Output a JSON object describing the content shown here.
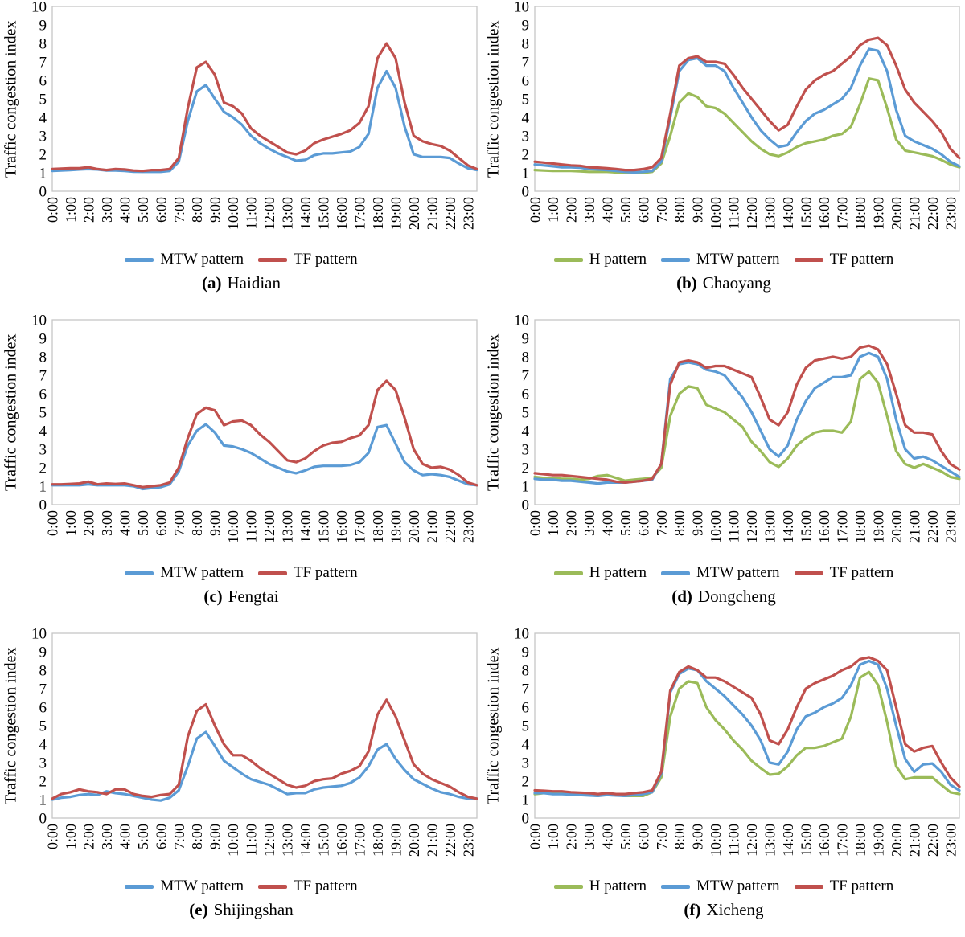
{
  "figure": {
    "ylabel": "Traffic congestion index"
  },
  "axis": {
    "y_ticks": [
      0,
      1,
      2,
      3,
      4,
      5,
      6,
      7,
      8,
      9,
      10
    ],
    "x_tick_labels": [
      "0:00",
      "1:00",
      "2:00",
      "3:00",
      "4:00",
      "5:00",
      "6:00",
      "7:00",
      "8:00",
      "9:00",
      "10:00",
      "11:00",
      "12:00",
      "13:00",
      "14:00",
      "15:00",
      "16:00",
      "17:00",
      "18:00",
      "19:00",
      "20:00",
      "21:00",
      "22:00",
      "23:00"
    ]
  },
  "colors": {
    "H pattern": "#9BBB59",
    "MTW pattern": "#5B9BD5",
    "TF pattern": "#C0504D"
  },
  "chart_data": [
    {
      "type": "line",
      "caption_letter": "(a)",
      "caption_name": "Haidian",
      "ylim": [
        0,
        10
      ],
      "x_start": "0:00",
      "x_step_hours": 0.5,
      "grid": false,
      "legend_position": "bottom",
      "series": [
        {
          "name": "MTW pattern",
          "values": [
            1.1,
            1.12,
            1.15,
            1.18,
            1.2,
            1.18,
            1.12,
            1.12,
            1.1,
            1.06,
            1.05,
            1.05,
            1.05,
            1.1,
            1.6,
            3.8,
            5.4,
            5.75,
            5.0,
            4.3,
            4.0,
            3.6,
            3.0,
            2.6,
            2.3,
            2.05,
            1.85,
            1.65,
            1.7,
            1.95,
            2.05,
            2.05,
            2.1,
            2.15,
            2.4,
            3.1,
            5.6,
            6.5,
            5.6,
            3.5,
            2.0,
            1.85,
            1.85,
            1.85,
            1.8,
            1.5,
            1.25,
            1.15
          ]
        },
        {
          "name": "TF pattern",
          "values": [
            1.2,
            1.22,
            1.25,
            1.25,
            1.3,
            1.2,
            1.15,
            1.2,
            1.18,
            1.12,
            1.1,
            1.15,
            1.15,
            1.2,
            1.8,
            4.5,
            6.7,
            7.0,
            6.3,
            4.8,
            4.6,
            4.2,
            3.4,
            3.0,
            2.7,
            2.4,
            2.1,
            2.0,
            2.2,
            2.6,
            2.8,
            2.95,
            3.1,
            3.3,
            3.7,
            4.6,
            7.2,
            8.0,
            7.2,
            4.8,
            3.0,
            2.7,
            2.55,
            2.45,
            2.2,
            1.8,
            1.4,
            1.2
          ]
        }
      ]
    },
    {
      "type": "line",
      "caption_letter": "(b)",
      "caption_name": "Chaoyang",
      "ylim": [
        0,
        10
      ],
      "x_start": "0:00",
      "x_step_hours": 0.5,
      "grid": false,
      "legend_position": "bottom",
      "series": [
        {
          "name": "H pattern",
          "values": [
            1.15,
            1.12,
            1.1,
            1.1,
            1.1,
            1.08,
            1.05,
            1.05,
            1.05,
            1.02,
            1.0,
            1.0,
            1.0,
            1.05,
            1.5,
            3.0,
            4.8,
            5.3,
            5.1,
            4.6,
            4.5,
            4.2,
            3.7,
            3.2,
            2.7,
            2.3,
            2.0,
            1.9,
            2.1,
            2.4,
            2.6,
            2.7,
            2.8,
            3.0,
            3.1,
            3.5,
            4.7,
            6.1,
            6.0,
            4.5,
            2.8,
            2.2,
            2.1,
            2.0,
            1.9,
            1.7,
            1.45,
            1.3
          ]
        },
        {
          "name": "MTW pattern",
          "values": [
            1.45,
            1.4,
            1.35,
            1.3,
            1.3,
            1.28,
            1.2,
            1.18,
            1.15,
            1.1,
            1.05,
            1.02,
            1.05,
            1.1,
            1.6,
            4.0,
            6.5,
            7.1,
            7.2,
            6.8,
            6.8,
            6.5,
            5.6,
            4.8,
            4.0,
            3.3,
            2.8,
            2.4,
            2.5,
            3.2,
            3.8,
            4.2,
            4.4,
            4.7,
            5.0,
            5.6,
            6.8,
            7.7,
            7.6,
            6.5,
            4.4,
            3.0,
            2.7,
            2.5,
            2.3,
            2.0,
            1.6,
            1.35
          ]
        },
        {
          "name": "TF pattern",
          "values": [
            1.6,
            1.55,
            1.5,
            1.45,
            1.4,
            1.38,
            1.3,
            1.28,
            1.25,
            1.2,
            1.15,
            1.15,
            1.2,
            1.3,
            1.8,
            4.2,
            6.8,
            7.2,
            7.3,
            7.0,
            7.0,
            6.9,
            6.3,
            5.6,
            5.0,
            4.4,
            3.8,
            3.3,
            3.6,
            4.6,
            5.5,
            6.0,
            6.3,
            6.5,
            6.9,
            7.3,
            7.9,
            8.2,
            8.3,
            7.9,
            6.8,
            5.5,
            4.8,
            4.3,
            3.8,
            3.2,
            2.3,
            1.8
          ]
        }
      ]
    },
    {
      "type": "line",
      "caption_letter": "(c)",
      "caption_name": "Fengtai",
      "ylim": [
        0,
        10
      ],
      "x_start": "0:00",
      "x_step_hours": 0.5,
      "grid": false,
      "legend_position": "bottom",
      "series": [
        {
          "name": "MTW pattern",
          "values": [
            1.05,
            1.05,
            1.05,
            1.05,
            1.1,
            1.05,
            1.05,
            1.05,
            1.05,
            1.0,
            0.85,
            0.9,
            0.95,
            1.1,
            1.8,
            3.2,
            4.0,
            4.35,
            3.9,
            3.2,
            3.15,
            3.0,
            2.8,
            2.5,
            2.2,
            2.0,
            1.8,
            1.7,
            1.85,
            2.05,
            2.1,
            2.1,
            2.1,
            2.15,
            2.3,
            2.8,
            4.2,
            4.3,
            3.3,
            2.3,
            1.85,
            1.6,
            1.65,
            1.6,
            1.5,
            1.3,
            1.1,
            1.05
          ]
        },
        {
          "name": "TF pattern",
          "values": [
            1.1,
            1.1,
            1.12,
            1.15,
            1.25,
            1.1,
            1.15,
            1.12,
            1.15,
            1.05,
            0.95,
            1.0,
            1.05,
            1.2,
            2.0,
            3.6,
            4.9,
            5.25,
            5.1,
            4.3,
            4.5,
            4.55,
            4.3,
            3.8,
            3.4,
            2.9,
            2.4,
            2.3,
            2.5,
            2.9,
            3.2,
            3.35,
            3.4,
            3.6,
            3.75,
            4.3,
            6.2,
            6.7,
            6.2,
            4.7,
            3.0,
            2.2,
            2.0,
            2.05,
            1.9,
            1.6,
            1.2,
            1.05
          ]
        }
      ]
    },
    {
      "type": "line",
      "caption_letter": "(d)",
      "caption_name": "Dongcheng",
      "ylim": [
        0,
        10
      ],
      "x_start": "0:00",
      "x_step_hours": 0.5,
      "grid": false,
      "legend_position": "bottom",
      "series": [
        {
          "name": "H pattern",
          "values": [
            1.5,
            1.45,
            1.45,
            1.4,
            1.4,
            1.35,
            1.4,
            1.55,
            1.6,
            1.45,
            1.3,
            1.35,
            1.4,
            1.45,
            2.0,
            4.8,
            6.0,
            6.4,
            6.3,
            5.4,
            5.2,
            5.0,
            4.6,
            4.2,
            3.4,
            2.9,
            2.3,
            2.05,
            2.5,
            3.2,
            3.6,
            3.9,
            4.0,
            4.0,
            3.9,
            4.5,
            6.8,
            7.2,
            6.6,
            4.8,
            2.9,
            2.2,
            2.0,
            2.2,
            2.0,
            1.8,
            1.5,
            1.4
          ]
        },
        {
          "name": "MTW pattern",
          "values": [
            1.4,
            1.35,
            1.35,
            1.3,
            1.3,
            1.25,
            1.2,
            1.15,
            1.2,
            1.2,
            1.2,
            1.25,
            1.3,
            1.35,
            2.2,
            6.8,
            7.6,
            7.7,
            7.6,
            7.3,
            7.2,
            7.0,
            6.4,
            5.8,
            5.0,
            4.0,
            3.0,
            2.6,
            3.2,
            4.6,
            5.6,
            6.3,
            6.6,
            6.9,
            6.9,
            7.0,
            8.0,
            8.2,
            8.0,
            6.8,
            4.6,
            3.0,
            2.5,
            2.6,
            2.4,
            2.1,
            1.8,
            1.5
          ]
        },
        {
          "name": "TF pattern",
          "values": [
            1.7,
            1.65,
            1.6,
            1.6,
            1.55,
            1.5,
            1.45,
            1.4,
            1.35,
            1.25,
            1.2,
            1.25,
            1.3,
            1.4,
            2.2,
            6.5,
            7.7,
            7.8,
            7.7,
            7.4,
            7.5,
            7.5,
            7.3,
            7.1,
            6.9,
            5.8,
            4.6,
            4.3,
            5.0,
            6.5,
            7.4,
            7.8,
            7.9,
            8.0,
            7.9,
            8.0,
            8.5,
            8.6,
            8.4,
            7.6,
            6.0,
            4.3,
            3.9,
            3.9,
            3.8,
            2.9,
            2.2,
            1.9
          ]
        }
      ]
    },
    {
      "type": "line",
      "caption_letter": "(e)",
      "caption_name": "Shijingshan",
      "ylim": [
        0,
        10
      ],
      "x_start": "0:00",
      "x_step_hours": 0.5,
      "grid": false,
      "legend_position": "bottom",
      "series": [
        {
          "name": "MTW pattern",
          "values": [
            1.0,
            1.1,
            1.15,
            1.25,
            1.3,
            1.25,
            1.45,
            1.35,
            1.3,
            1.2,
            1.1,
            1.0,
            0.95,
            1.1,
            1.5,
            2.8,
            4.3,
            4.65,
            3.9,
            3.1,
            2.75,
            2.4,
            2.1,
            1.95,
            1.8,
            1.55,
            1.3,
            1.35,
            1.35,
            1.55,
            1.65,
            1.7,
            1.75,
            1.9,
            2.2,
            2.8,
            3.7,
            4.0,
            3.2,
            2.6,
            2.1,
            1.85,
            1.6,
            1.4,
            1.3,
            1.15,
            1.05,
            1.05
          ]
        },
        {
          "name": "TF pattern",
          "values": [
            1.05,
            1.3,
            1.4,
            1.55,
            1.45,
            1.4,
            1.3,
            1.55,
            1.55,
            1.3,
            1.2,
            1.15,
            1.25,
            1.3,
            1.8,
            4.4,
            5.8,
            6.15,
            5.0,
            4.0,
            3.4,
            3.4,
            3.1,
            2.7,
            2.4,
            2.1,
            1.8,
            1.65,
            1.75,
            2.0,
            2.1,
            2.15,
            2.4,
            2.55,
            2.8,
            3.6,
            5.6,
            6.4,
            5.5,
            4.2,
            2.9,
            2.4,
            2.1,
            1.9,
            1.7,
            1.4,
            1.15,
            1.05
          ]
        }
      ]
    },
    {
      "type": "line",
      "caption_letter": "(f)",
      "caption_name": "Xicheng",
      "ylim": [
        0,
        10
      ],
      "x_start": "0:00",
      "x_step_hours": 0.5,
      "grid": false,
      "legend_position": "bottom",
      "series": [
        {
          "name": "H pattern",
          "values": [
            1.3,
            1.35,
            1.35,
            1.35,
            1.3,
            1.25,
            1.25,
            1.2,
            1.3,
            1.25,
            1.2,
            1.2,
            1.2,
            1.4,
            2.2,
            5.5,
            7.0,
            7.4,
            7.3,
            6.0,
            5.3,
            4.8,
            4.2,
            3.7,
            3.1,
            2.7,
            2.35,
            2.4,
            2.8,
            3.4,
            3.8,
            3.8,
            3.9,
            4.1,
            4.3,
            5.5,
            7.6,
            7.9,
            7.2,
            5.2,
            2.8,
            2.1,
            2.2,
            2.2,
            2.2,
            1.8,
            1.4,
            1.3
          ]
        },
        {
          "name": "MTW pattern",
          "values": [
            1.35,
            1.35,
            1.3,
            1.3,
            1.28,
            1.25,
            1.22,
            1.2,
            1.25,
            1.22,
            1.2,
            1.25,
            1.3,
            1.4,
            2.4,
            6.8,
            7.8,
            8.1,
            8.0,
            7.4,
            7.0,
            6.6,
            6.1,
            5.6,
            5.0,
            4.2,
            3.0,
            2.9,
            3.6,
            4.8,
            5.5,
            5.7,
            6.0,
            6.2,
            6.5,
            7.2,
            8.3,
            8.5,
            8.3,
            7.0,
            5.0,
            3.2,
            2.5,
            2.9,
            2.95,
            2.5,
            1.8,
            1.5
          ]
        },
        {
          "name": "TF pattern",
          "values": [
            1.5,
            1.48,
            1.45,
            1.45,
            1.4,
            1.38,
            1.35,
            1.3,
            1.35,
            1.3,
            1.3,
            1.35,
            1.4,
            1.5,
            2.5,
            6.9,
            7.9,
            8.2,
            8.0,
            7.6,
            7.6,
            7.4,
            7.1,
            6.8,
            6.5,
            5.6,
            4.2,
            4.0,
            4.8,
            6.0,
            7.0,
            7.3,
            7.5,
            7.7,
            8.0,
            8.2,
            8.6,
            8.7,
            8.5,
            8.0,
            6.0,
            4.0,
            3.6,
            3.8,
            3.9,
            3.0,
            2.2,
            1.7
          ]
        }
      ]
    }
  ]
}
